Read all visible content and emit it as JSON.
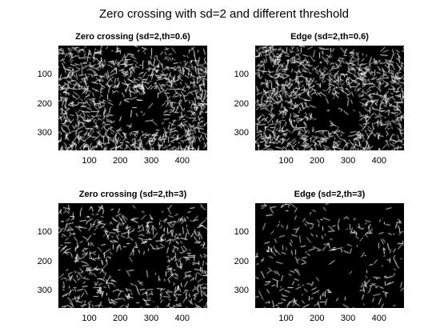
{
  "figure": {
    "title": "Zero crossing with sd=2 and different threshold"
  },
  "panels": [
    {
      "title": "Zero crossing (sd=2,th=0.6)",
      "image": "binary edge map, black background with white edge pixels",
      "density": 0.62,
      "seed": 11
    },
    {
      "title": "Edge (sd=2,th=0.6)",
      "image": "binary edge map, black background with white edge pixels",
      "density": 0.6,
      "seed": 23
    },
    {
      "title": "Zero crossing (sd=2,th=3)",
      "image": "binary edge map, black background with white edge pixels",
      "density": 0.34,
      "seed": 37
    },
    {
      "title": "Edge (sd=2,th=3)",
      "image": "binary edge map, black background with white edge pixels",
      "density": 0.16,
      "seed": 51
    }
  ],
  "axes": {
    "xticks": [
      "100",
      "200",
      "300",
      "400"
    ],
    "yticks": [
      "100",
      "200",
      "300"
    ],
    "xlim": [
      0.5,
      480.5
    ],
    "ylim": [
      0.5,
      360.5
    ],
    "x_tick_values": [
      100,
      200,
      300,
      400
    ],
    "y_tick_values": [
      100,
      200,
      300
    ],
    "ydir": "reverse",
    "colormap": "gray",
    "colors": {
      "background": "#000000",
      "edge": "#ffffff"
    }
  }
}
